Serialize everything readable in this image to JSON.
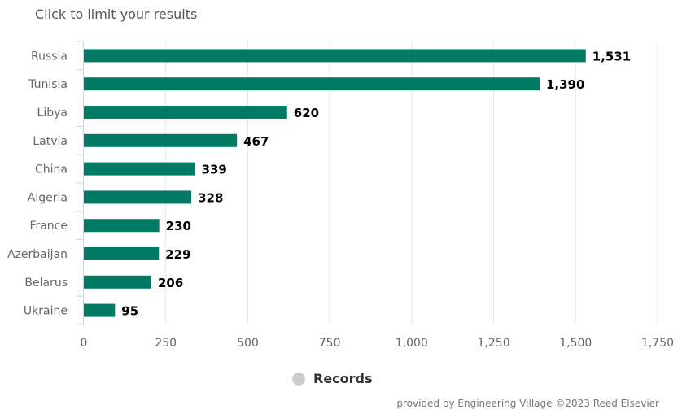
{
  "hint": "Click to limit your results",
  "legend": {
    "label": "Records",
    "marker_color": "#cccccc"
  },
  "credit": "provided by Engineering Village ©2023 Reed Elsevier",
  "colors": {
    "bar": "#007a63",
    "grid": "#e6e6e6",
    "axis": "#ccd6eb"
  },
  "chart_data": {
    "type": "bar",
    "orientation": "horizontal",
    "categories": [
      "Russia",
      "Tunisia",
      "Libya",
      "Latvia",
      "China",
      "Algeria",
      "France",
      "Azerbaijan",
      "Belarus",
      "Ukraine"
    ],
    "series": [
      {
        "name": "Records",
        "values": [
          1531,
          1390,
          620,
          467,
          339,
          328,
          230,
          229,
          206,
          95
        ]
      }
    ],
    "data_labels": [
      "1,531",
      "1,390",
      "620",
      "467",
      "339",
      "328",
      "230",
      "229",
      "206",
      "95"
    ],
    "xlim": [
      0,
      1750
    ],
    "x_ticks": [
      0,
      250,
      500,
      750,
      1000,
      1250,
      1500,
      1750
    ],
    "x_tick_labels": [
      "0",
      "250",
      "500",
      "750",
      "1,000",
      "1,250",
      "1,500",
      "1,750"
    ],
    "grid": true,
    "legend_position": "bottom-center"
  }
}
